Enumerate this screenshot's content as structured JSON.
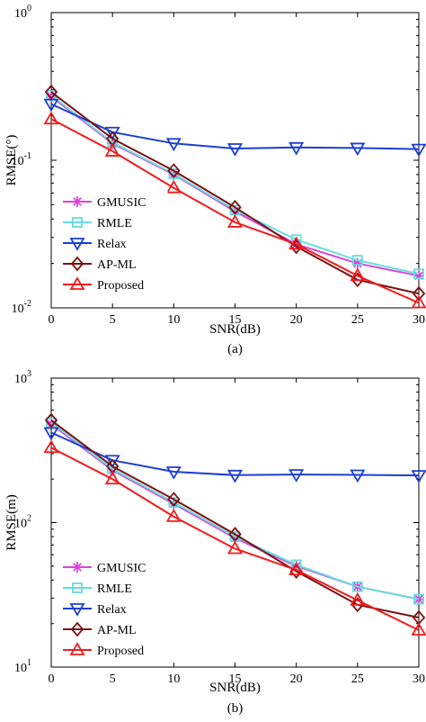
{
  "chart_data": [
    {
      "type": "line",
      "panel_label": "(a)",
      "xlabel": "SNR(dB)",
      "ylabel": "RMSE(°)",
      "x": [
        0,
        5,
        10,
        15,
        20,
        25,
        30
      ],
      "xlim": [
        0,
        30
      ],
      "ylim": [
        0.01,
        1
      ],
      "yscale": "log",
      "x_ticks": [
        "0",
        "5",
        "10",
        "15",
        "20",
        "25",
        "30"
      ],
      "y_ticks": [
        {
          "base": "10",
          "exp": "-2"
        },
        {
          "base": "10",
          "exp": "-1"
        },
        {
          "base": "10",
          "exp": "0"
        }
      ],
      "grid": false,
      "legend_position": "lower-left",
      "series": [
        {
          "name": "GMUSIC",
          "marker": "asterisk",
          "color": "#dd44dd",
          "values": [
            0.27,
            0.13,
            0.08,
            0.045,
            0.027,
            0.02,
            0.0165
          ]
        },
        {
          "name": "RMLE",
          "marker": "square",
          "color": "#66dddd",
          "values": [
            0.275,
            0.132,
            0.081,
            0.046,
            0.029,
            0.021,
            0.017
          ]
        },
        {
          "name": "Relax",
          "marker": "triangle-down",
          "color": "#1c3fd1",
          "values": [
            0.24,
            0.155,
            0.13,
            0.12,
            0.122,
            0.121,
            0.119
          ]
        },
        {
          "name": "AP-ML",
          "marker": "diamond",
          "color": "#7a1212",
          "values": [
            0.29,
            0.14,
            0.085,
            0.048,
            0.026,
            0.0155,
            0.0125
          ]
        },
        {
          "name": "Proposed",
          "marker": "triangle-up",
          "color": "#ee1c1c",
          "values": [
            0.19,
            0.115,
            0.065,
            0.038,
            0.027,
            0.0165,
            0.0108
          ]
        }
      ]
    },
    {
      "type": "line",
      "panel_label": "(b)",
      "xlabel": "SNR(dB)",
      "ylabel": "RMSE(m)",
      "x": [
        0,
        5,
        10,
        15,
        20,
        25,
        30
      ],
      "xlim": [
        0,
        30
      ],
      "ylim": [
        10,
        1000
      ],
      "yscale": "log",
      "x_ticks": [
        "0",
        "5",
        "10",
        "15",
        "20",
        "25",
        "30"
      ],
      "y_ticks": [
        {
          "base": "10",
          "exp": "1"
        },
        {
          "base": "10",
          "exp": "2"
        },
        {
          "base": "10",
          "exp": "3"
        }
      ],
      "grid": false,
      "legend_position": "lower-left",
      "series": [
        {
          "name": "GMUSIC",
          "marker": "asterisk",
          "color": "#dd44dd",
          "values": [
            480,
            230,
            135,
            78,
            50,
            36,
            29.5
          ]
        },
        {
          "name": "RMLE",
          "marker": "square",
          "color": "#66dddd",
          "values": [
            490,
            235,
            138,
            80,
            51,
            36,
            29.5
          ]
        },
        {
          "name": "Relax",
          "marker": "triangle-down",
          "color": "#1c3fd1",
          "values": [
            420,
            270,
            225,
            213,
            215,
            214,
            212
          ]
        },
        {
          "name": "AP-ML",
          "marker": "diamond",
          "color": "#7a1212",
          "values": [
            510,
            245,
            145,
            83,
            46,
            27,
            22
          ]
        },
        {
          "name": "Proposed",
          "marker": "triangle-up",
          "color": "#ee1c1c",
          "values": [
            330,
            200,
            110,
            66,
            47,
            29,
            18
          ]
        }
      ]
    }
  ]
}
